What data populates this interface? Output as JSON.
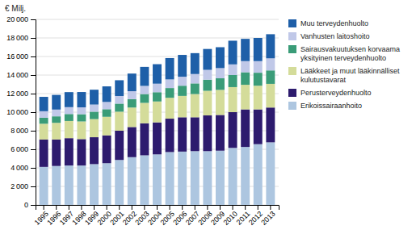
{
  "chart_data": {
    "type": "bar",
    "stacked": true,
    "ylabel": "€ Milj.",
    "categories": [
      "1995",
      "1996",
      "1997",
      "1998",
      "1999",
      "2000",
      "2001",
      "2002",
      "2003",
      "2004",
      "2005",
      "2006",
      "2007",
      "2008",
      "2009",
      "2010",
      "2011",
      "2012",
      "2013"
    ],
    "series": [
      {
        "name": "Erikoissairaanhoito",
        "color": "#adc6e0",
        "values": [
          4100,
          4200,
          4250,
          4250,
          4400,
          4500,
          4850,
          5150,
          5350,
          5450,
          5700,
          5750,
          5800,
          5800,
          5850,
          6150,
          6250,
          6550,
          6750
        ]
      },
      {
        "name": "Perusterveydenhuolto",
        "color": "#2d1b6e",
        "values": [
          2950,
          2850,
          2950,
          2850,
          2900,
          3000,
          3150,
          3250,
          3450,
          3450,
          3600,
          3700,
          3650,
          3850,
          3850,
          3850,
          4050,
          3750,
          3750
        ]
      },
      {
        "name": "Lääkkeet ja muut lääkinnälliset kulutustavarat",
        "color": "#d4dc9a",
        "values": [
          1700,
          1800,
          1850,
          1900,
          1950,
          2000,
          2050,
          2100,
          2200,
          2250,
          2250,
          2300,
          2500,
          2650,
          2700,
          2700,
          2650,
          2550,
          2550
        ]
      },
      {
        "name": "Sairausvakuutuksen korvaama yksityinen terveydenhuolto",
        "color": "#3a9c78",
        "values": [
          650,
          700,
          750,
          780,
          800,
          820,
          870,
          900,
          950,
          1000,
          1050,
          1100,
          1150,
          1200,
          1250,
          1300,
          1350,
          1400,
          1450
        ]
      },
      {
        "name": "Vanhusten laitoshoito",
        "color": "#c0c8e8",
        "values": [
          700,
          730,
          740,
          740,
          770,
          780,
          820,
          860,
          880,
          920,
          930,
          970,
          1010,
          1060,
          1100,
          1150,
          1200,
          1250,
          1300
        ]
      },
      {
        "name": "Muu terveydenhuolto",
        "color": "#1e5fa8",
        "values": [
          1550,
          1580,
          1620,
          1650,
          1600,
          1680,
          1700,
          1900,
          2050,
          2100,
          2300,
          2350,
          2250,
          2250,
          2250,
          2550,
          2400,
          2500,
          2600
        ]
      }
    ],
    "ylim": [
      0,
      20000
    ],
    "yticks": [
      0,
      {
        "value": 2000,
        "label": "2 000"
      },
      {
        "value": 4000,
        "label": "4 000"
      },
      {
        "value": 6000,
        "label": "6 000"
      },
      {
        "value": 8000,
        "label": "8 000"
      },
      {
        "value": 10000,
        "label": "10 000"
      },
      {
        "value": 12000,
        "label": "12 000"
      },
      {
        "value": 14000,
        "label": "14 000"
      },
      {
        "value": 16000,
        "label": "16 000"
      },
      {
        "value": 18000,
        "label": "18 000"
      },
      {
        "value": 20000,
        "label": "20 000"
      }
    ],
    "grid": true,
    "legend": "right"
  }
}
